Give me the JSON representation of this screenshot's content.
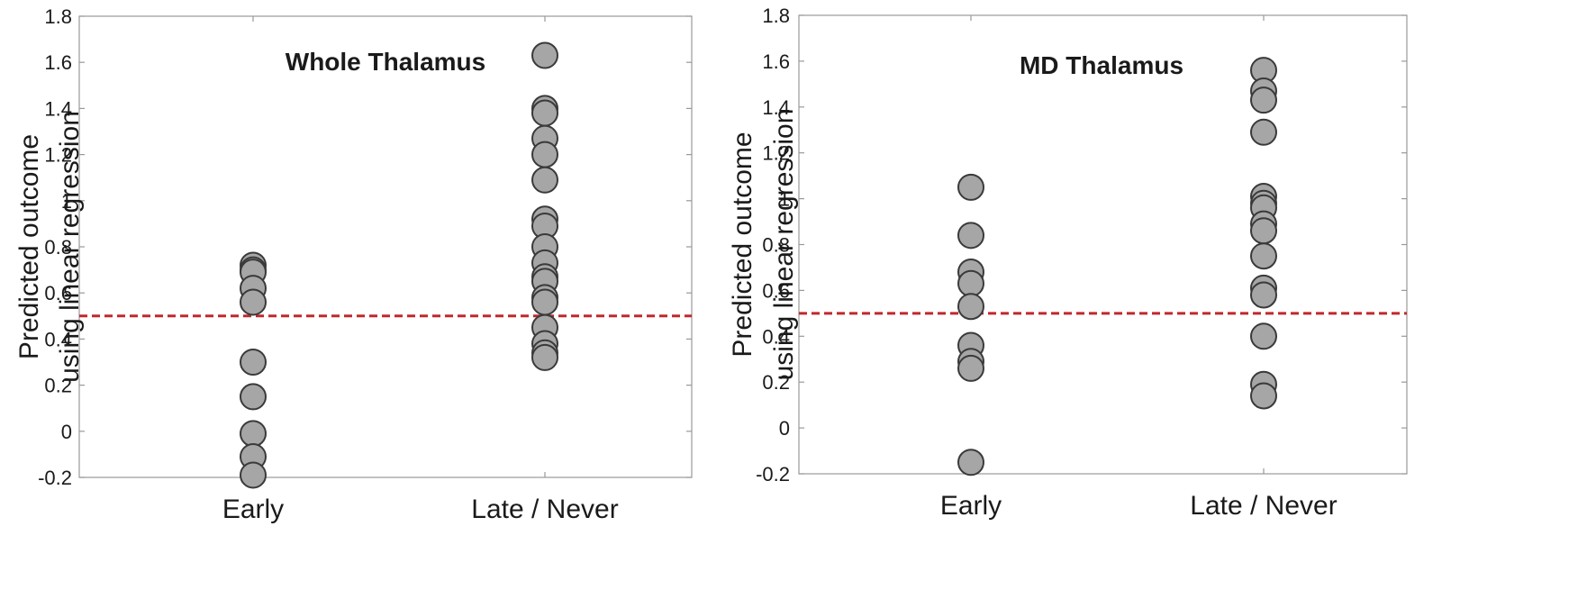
{
  "chart_data": [
    {
      "type": "scatter",
      "title": "Whole Thalamus",
      "ylabel_lines": [
        "Predicted outcome",
        "using linear regression"
      ],
      "categories": [
        "Early",
        "Late / Never"
      ],
      "ylim": [
        -0.2,
        1.8
      ],
      "yticks": [
        "-0.2",
        "0",
        "0.2",
        "0.4",
        "0.6",
        "0.8",
        "1",
        "1.2",
        "1.4",
        "1.6",
        "1.8"
      ],
      "threshold": 0.5,
      "series": [
        {
          "category": "Early",
          "values": [
            0.72,
            0.7,
            0.69,
            0.62,
            0.56,
            0.3,
            0.15,
            -0.01,
            -0.11,
            -0.19
          ]
        },
        {
          "category": "Late / Never",
          "values": [
            1.63,
            1.4,
            1.38,
            1.27,
            1.2,
            1.09,
            0.92,
            0.89,
            0.8,
            0.73,
            0.67,
            0.65,
            0.58,
            0.56,
            0.45,
            0.38,
            0.34,
            0.32
          ]
        }
      ],
      "grid": false,
      "colors": {
        "marker_fill": "#a6a6a6",
        "marker_edge": "#3a3a3a",
        "threshold_line": "#c0282d",
        "axis": "#999999"
      }
    },
    {
      "type": "scatter",
      "title": "MD Thalamus",
      "ylabel_lines": [
        "Predicted outcome",
        "using linear regression"
      ],
      "categories": [
        "Early",
        "Late / Never"
      ],
      "ylim": [
        -0.2,
        1.8
      ],
      "yticks": [
        "-0.2",
        "0",
        "0.2",
        "0.4",
        "0.6",
        "0.8",
        "1",
        "1.2",
        "1.4",
        "1.6",
        "1.8"
      ],
      "threshold": 0.5,
      "series": [
        {
          "category": "Early",
          "values": [
            1.05,
            0.84,
            0.68,
            0.63,
            0.53,
            0.36,
            0.29,
            0.26,
            -0.15
          ]
        },
        {
          "category": "Late / Never",
          "values": [
            1.56,
            1.47,
            1.43,
            1.29,
            1.01,
            0.98,
            0.96,
            0.89,
            0.86,
            0.75,
            0.61,
            0.58,
            0.4,
            0.19,
            0.14
          ]
        }
      ],
      "grid": false,
      "colors": {
        "marker_fill": "#a6a6a6",
        "marker_edge": "#3a3a3a",
        "threshold_line": "#c0282d",
        "axis": "#999999"
      }
    }
  ]
}
